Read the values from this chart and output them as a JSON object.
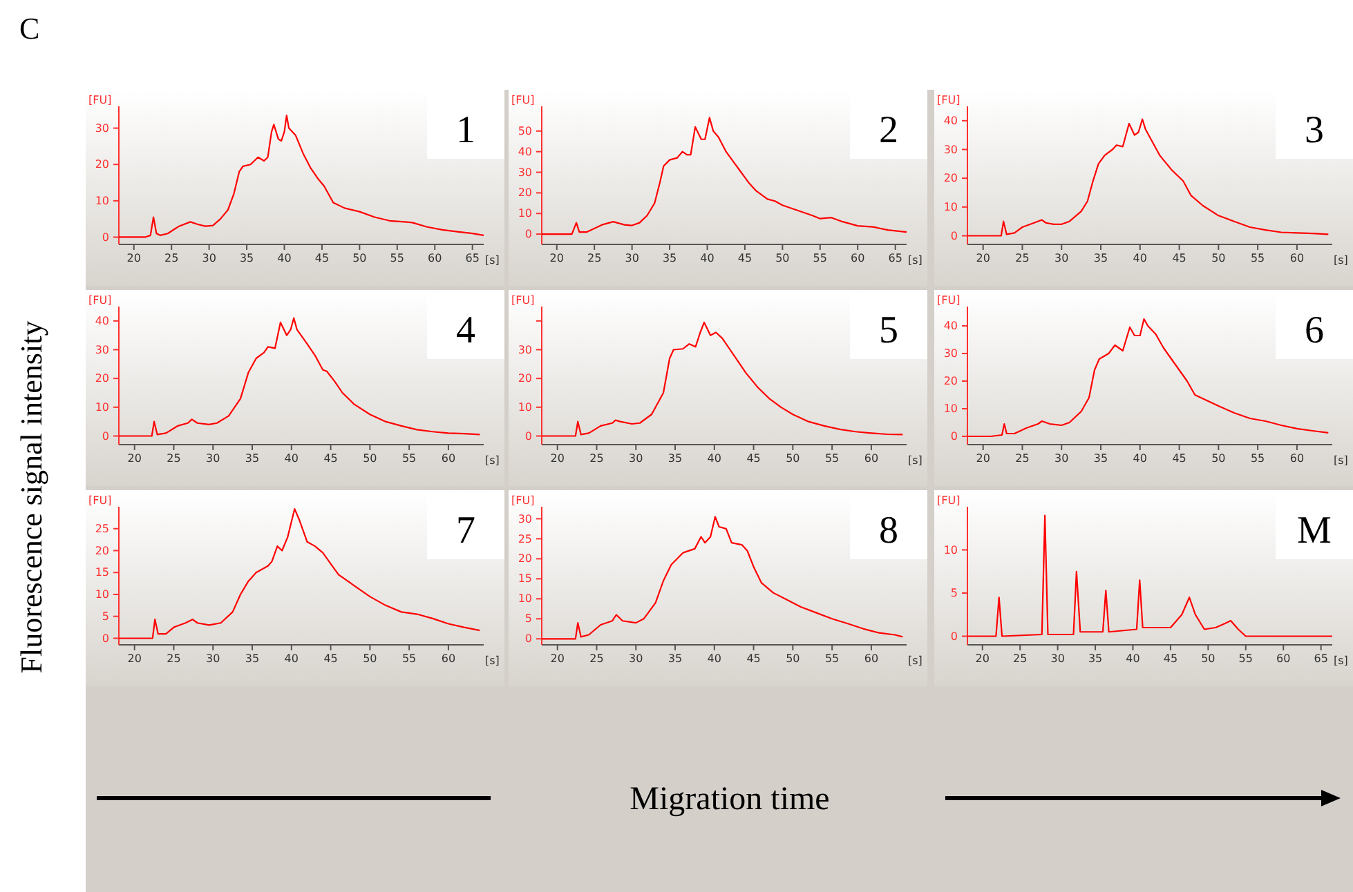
{
  "chart_data": [
    {
      "type": "line",
      "title": "1",
      "xlabel": "[s]",
      "ylabel": "[FU]",
      "annotations": [
        "C",
        "Fluorescence signal intensity",
        "Migration time"
      ],
      "xlim": [
        18,
        66.5
      ],
      "ylim": [
        -2,
        36
      ],
      "xticks": [
        20,
        25,
        30,
        35,
        40,
        45,
        50,
        55,
        60,
        65
      ],
      "yticks": [
        0,
        10,
        20,
        30
      ],
      "grid": false,
      "series": [
        {
          "color": "#ff0000",
          "x": [
            18,
            21.5,
            22.2,
            22.6,
            23.0,
            23.5,
            24.5,
            26,
            27.5,
            28.5,
            29.5,
            30.5,
            31.5,
            32.5,
            33.3,
            34,
            34.5,
            35.5,
            36.5,
            37.3,
            37.8,
            38.3,
            38.6,
            39.2,
            39.6,
            40.0,
            40.3,
            40.6,
            41.5,
            42.5,
            43.5,
            44.5,
            45.3,
            46.5,
            48,
            50,
            52,
            54,
            56,
            57,
            59,
            61,
            63,
            65,
            66.5
          ],
          "values": [
            0,
            0,
            0.5,
            5.5,
            1,
            0.5,
            1,
            3,
            4.2,
            3.5,
            3,
            3.2,
            5,
            7.5,
            12,
            18,
            19.5,
            20,
            22,
            21,
            22,
            29,
            31,
            27,
            26.5,
            29,
            33.5,
            30,
            28,
            23,
            19,
            16,
            14,
            9.5,
            8,
            7,
            5.5,
            4.5,
            4.2,
            4,
            2.8,
            2,
            1.5,
            1,
            0.5
          ]
        }
      ]
    },
    {
      "type": "line",
      "title": "2",
      "xlabel": "[s]",
      "ylabel": "[FU]",
      "xlim": [
        18,
        66.5
      ],
      "ylim": [
        -5,
        62
      ],
      "xticks": [
        20,
        25,
        30,
        35,
        40,
        45,
        50,
        55,
        60,
        65
      ],
      "yticks": [
        0,
        10,
        20,
        30,
        40,
        50
      ],
      "grid": false,
      "series": [
        {
          "color": "#ff0000",
          "x": [
            18,
            22,
            22.6,
            23,
            24,
            26,
            27.5,
            29,
            30,
            31,
            32,
            33,
            33.7,
            34.2,
            35,
            36,
            36.7,
            37.3,
            37.8,
            38.4,
            39.2,
            39.7,
            40.3,
            40.8,
            41.5,
            42.5,
            43.5,
            44.5,
            45.5,
            46.5,
            48,
            49,
            50,
            52,
            54,
            55,
            56.5,
            58,
            60,
            62,
            64,
            66.5
          ],
          "values": [
            0,
            0,
            5.5,
            1,
            1,
            4.5,
            6,
            4.5,
            4.2,
            5.5,
            9,
            15,
            25,
            33,
            36,
            37,
            40,
            38.5,
            38.5,
            52,
            46,
            46,
            56.5,
            50,
            47,
            40,
            35,
            30,
            25,
            21,
            17,
            16,
            14,
            11.5,
            9,
            7.5,
            8,
            6,
            4,
            3.5,
            2,
            1
          ]
        }
      ]
    },
    {
      "type": "line",
      "title": "3",
      "xlabel": "[s]",
      "ylabel": "[FU]",
      "xlim": [
        18,
        64.5
      ],
      "ylim": [
        -3,
        45
      ],
      "xticks": [
        20,
        25,
        30,
        35,
        40,
        45,
        50,
        55,
        60
      ],
      "yticks": [
        0,
        10,
        20,
        30,
        40
      ],
      "grid": false,
      "series": [
        {
          "color": "#ff0000",
          "x": [
            18,
            22.3,
            22.6,
            23,
            24,
            25,
            26.5,
            27.5,
            28,
            29,
            30,
            31,
            32.5,
            33.3,
            34,
            34.7,
            35.5,
            36.5,
            37,
            37.8,
            38.6,
            39.3,
            39.8,
            40.3,
            40.7,
            41.5,
            42.5,
            44,
            45.5,
            46.5,
            48,
            50,
            52,
            54,
            56,
            58,
            60,
            62,
            64
          ],
          "values": [
            0,
            0,
            5,
            0.5,
            1,
            3,
            4.5,
            5.5,
            4.5,
            4,
            4,
            5,
            8.5,
            12,
            19,
            25,
            28,
            30,
            31.5,
            31,
            39,
            35,
            36,
            40.5,
            37,
            33,
            28,
            23,
            19,
            14,
            10.5,
            7,
            5,
            3,
            2,
            1.2,
            1,
            0.8,
            0.5
          ]
        }
      ]
    },
    {
      "type": "line",
      "title": "4",
      "xlabel": "[s]",
      "ylabel": "[FU]",
      "xlim": [
        18,
        64.5
      ],
      "ylim": [
        -3,
        45
      ],
      "xticks": [
        20,
        25,
        30,
        35,
        40,
        45,
        50,
        55,
        60
      ],
      "yticks": [
        0,
        10,
        20,
        30,
        40
      ],
      "grid": false,
      "series": [
        {
          "color": "#ff0000",
          "x": [
            18,
            22.2,
            22.5,
            22.9,
            24,
            25.5,
            26.8,
            27.3,
            28,
            29.5,
            30.5,
            32,
            33.5,
            34.5,
            35.5,
            36.5,
            37,
            37.9,
            38.6,
            39.4,
            39.9,
            40.3,
            40.7,
            42,
            43,
            44,
            44.5,
            45.5,
            46.5,
            48,
            50,
            52,
            54,
            56,
            58,
            60,
            62,
            64
          ],
          "values": [
            0,
            0,
            5,
            0.5,
            1,
            3.5,
            4.5,
            5.8,
            4.5,
            4,
            4.5,
            7,
            13,
            22,
            27,
            29,
            31,
            30.5,
            39.5,
            35,
            37,
            41,
            37,
            32,
            28,
            23,
            22.5,
            19,
            15,
            11,
            7.5,
            5,
            3.5,
            2.2,
            1.5,
            1,
            0.8,
            0.5
          ]
        }
      ]
    },
    {
      "type": "line",
      "title": "5",
      "xlabel": "[s]",
      "ylabel": "[FU]",
      "xlim": [
        18,
        64.5
      ],
      "ylim": [
        -3,
        45
      ],
      "xticks": [
        20,
        25,
        30,
        35,
        40,
        45,
        50,
        55,
        60
      ],
      "yticks": [
        0,
        10,
        20,
        30,
        {
          "value": 40,
          "label": null
        }
      ],
      "grid": false,
      "series": [
        {
          "color": "#ff0000",
          "x": [
            18,
            22.3,
            22.6,
            23,
            24,
            25.5,
            27,
            27.4,
            28,
            29.5,
            30.5,
            32,
            33.5,
            34.3,
            34.8,
            36,
            36.8,
            37.6,
            38.2,
            38.7,
            39.5,
            40.2,
            41,
            42,
            43,
            44,
            45.5,
            47,
            48.5,
            50,
            52,
            54,
            56,
            58,
            60,
            62,
            64
          ],
          "values": [
            0,
            0,
            5,
            0.5,
            1,
            3.5,
            4.5,
            5.5,
            5,
            4.2,
            4.5,
            7.5,
            15,
            27,
            30,
            30.3,
            32,
            31,
            36,
            39.5,
            35,
            36,
            34,
            30,
            26,
            22,
            17,
            13,
            10,
            7.5,
            5,
            3.5,
            2.3,
            1.5,
            1,
            0.6,
            0.5
          ]
        }
      ]
    },
    {
      "type": "line",
      "title": "6",
      "xlabel": "[s]",
      "ylabel": "[FU]",
      "xlim": [
        18,
        64.5
      ],
      "ylim": [
        -3,
        47
      ],
      "xticks": [
        20,
        25,
        30,
        35,
        40,
        45,
        50,
        55,
        60
      ],
      "yticks": [
        0,
        10,
        20,
        30,
        40
      ],
      "grid": false,
      "series": [
        {
          "color": "#ff0000",
          "x": [
            18,
            21,
            22.4,
            22.7,
            23,
            24,
            25.5,
            27,
            27.5,
            28.5,
            30,
            31,
            32.5,
            33.5,
            34.2,
            34.8,
            36,
            36.8,
            37.8,
            38.7,
            39.3,
            40,
            40.5,
            41,
            42,
            43,
            44,
            45,
            46,
            47,
            48.5,
            50,
            52,
            54,
            56,
            58,
            60,
            62,
            64
          ],
          "values": [
            0,
            0,
            0.5,
            4.5,
            1,
            1,
            3,
            4.5,
            5.5,
            4.5,
            4,
            5,
            9,
            14,
            24,
            28,
            30,
            33,
            31,
            39.5,
            36.5,
            36.5,
            42.5,
            40,
            37,
            32,
            28,
            24,
            20,
            15,
            13,
            11,
            8.5,
            6.5,
            5.5,
            4,
            2.8,
            2,
            1.3
          ]
        }
      ]
    },
    {
      "type": "line",
      "title": "7",
      "xlabel": "[s]",
      "ylabel": "[FU]",
      "xlim": [
        18,
        64.5
      ],
      "ylim": [
        -1.5,
        30
      ],
      "xticks": [
        20,
        25,
        30,
        35,
        40,
        45,
        50,
        55,
        60
      ],
      "yticks": [
        0,
        5,
        10,
        15,
        20,
        25
      ],
      "grid": false,
      "series": [
        {
          "color": "#ff0000",
          "x": [
            18,
            22.3,
            22.6,
            23,
            24,
            25,
            26.5,
            27.4,
            28,
            29.5,
            31,
            32.5,
            33.5,
            34.5,
            35.5,
            37,
            37.5,
            38.2,
            38.8,
            39.5,
            40.4,
            41,
            42,
            43,
            44,
            45,
            46,
            48,
            50,
            52,
            54,
            56,
            58,
            60,
            62,
            64
          ],
          "values": [
            0,
            0,
            4.3,
            1,
            1,
            2.5,
            3.5,
            4.3,
            3.5,
            3,
            3.5,
            6,
            10,
            13,
            15,
            16.5,
            17.5,
            21,
            20,
            23,
            29.5,
            27,
            22,
            21,
            19.5,
            17,
            14.5,
            12,
            9.5,
            7.5,
            6,
            5.5,
            4.5,
            3.3,
            2.5,
            1.8
          ]
        }
      ]
    },
    {
      "type": "line",
      "title": "8",
      "xlabel": "[s]",
      "ylabel": "[FU]",
      "xlim": [
        18,
        64.5
      ],
      "ylim": [
        -1.5,
        33
      ],
      "xticks": [
        20,
        25,
        30,
        35,
        40,
        45,
        50,
        55,
        60
      ],
      "yticks": [
        0,
        5,
        10,
        15,
        20,
        25,
        30
      ],
      "grid": false,
      "series": [
        {
          "color": "#ff0000",
          "x": [
            18,
            22.3,
            22.6,
            23,
            24,
            25.5,
            27,
            27.5,
            28.3,
            30,
            31,
            32.5,
            33.5,
            34.5,
            36,
            37.5,
            38.3,
            38.8,
            39.5,
            40.1,
            40.6,
            41.5,
            42.2,
            43.5,
            44.2,
            45,
            46,
            47.5,
            49,
            51,
            53,
            55,
            57,
            59,
            61,
            63,
            64
          ],
          "values": [
            0,
            0,
            4,
            0.5,
            1,
            3.5,
            4.5,
            6,
            4.5,
            4,
            5,
            9,
            14.5,
            18.5,
            21.5,
            22.5,
            25.5,
            24,
            25.5,
            30.5,
            28,
            27.5,
            24,
            23.5,
            22,
            18,
            14,
            11.5,
            10,
            8,
            6.5,
            5,
            3.8,
            2.5,
            1.5,
            1,
            0.5
          ]
        }
      ]
    },
    {
      "type": "line",
      "title": "M",
      "xlabel": "[s]",
      "ylabel": "[FU]",
      "xlim": [
        18,
        66.5
      ],
      "ylim": [
        -1,
        15
      ],
      "xticks": [
        20,
        25,
        30,
        35,
        40,
        45,
        50,
        55,
        60,
        65
      ],
      "yticks": [
        0,
        5,
        10
      ],
      "grid": false,
      "series": [
        {
          "color": "#ff0000",
          "x": [
            18,
            21.8,
            22.2,
            22.6,
            27.9,
            28.3,
            28.7,
            32.1,
            32.5,
            33,
            36,
            36.4,
            36.8,
            40.5,
            40.9,
            41.3,
            43,
            45,
            46.5,
            47.5,
            48.3,
            49.5,
            51,
            52.3,
            53,
            54,
            55,
            66.5
          ],
          "values": [
            0,
            0,
            4.5,
            0,
            0.2,
            14,
            0.2,
            0.2,
            7.5,
            0.5,
            0.5,
            5.3,
            0.5,
            0.8,
            6.5,
            1,
            1,
            1,
            2.5,
            4.5,
            2.5,
            0.8,
            1,
            1.5,
            1.8,
            0.8,
            0,
            0
          ]
        }
      ]
    }
  ]
}
